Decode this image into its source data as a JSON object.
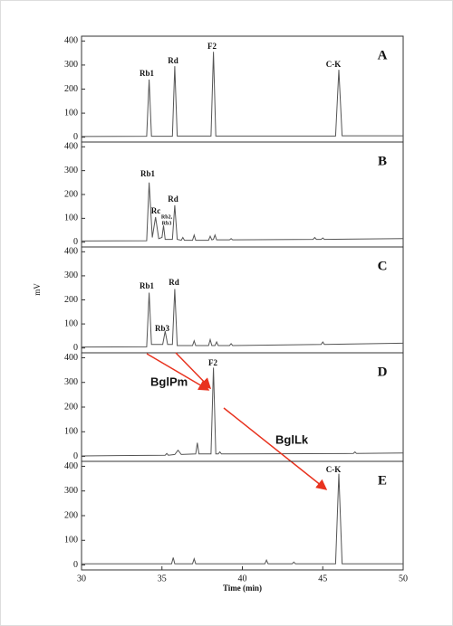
{
  "chart_data": [
    {
      "type": "line",
      "panel": "A",
      "color": "#555555",
      "xlim": [
        30,
        50
      ],
      "ylim": [
        -20,
        420
      ],
      "yticks": [
        0,
        100,
        200,
        300,
        400
      ],
      "annotations": [
        "Rb1",
        "Rd",
        "F2",
        "C-K"
      ],
      "x": [
        30,
        34.05,
        34.2,
        34.35,
        35.65,
        35.8,
        35.95,
        38.05,
        38.2,
        38.35,
        45.8,
        46,
        46.2,
        50
      ],
      "values": [
        3,
        4,
        240,
        4,
        4,
        295,
        5,
        5,
        355,
        5,
        5,
        280,
        6,
        6
      ]
    },
    {
      "type": "line",
      "panel": "B",
      "color": "#555555",
      "xlim": [
        30,
        50
      ],
      "ylim": [
        -20,
        420
      ],
      "yticks": [
        0,
        100,
        200,
        300,
        400
      ],
      "annotations": [
        "Rb1",
        "Rc",
        "Rb2,",
        "Rb3",
        "Rd"
      ],
      "x": [
        30,
        34.05,
        34.2,
        34.4,
        34.6,
        34.8,
        35.0,
        35.1,
        35.2,
        35.65,
        35.8,
        35.95,
        36.2,
        36.3,
        36.4,
        36.9,
        37.0,
        37.1,
        37.9,
        38.0,
        38.1,
        38.2,
        38.3,
        38.4,
        39.2,
        39.3,
        39.4,
        44.4,
        44.5,
        44.6,
        44.9,
        45,
        45.1,
        50
      ],
      "values": [
        5,
        6,
        250,
        20,
        105,
        15,
        20,
        70,
        12,
        12,
        155,
        12,
        8,
        20,
        8,
        8,
        30,
        8,
        8,
        25,
        10,
        12,
        30,
        10,
        10,
        15,
        10,
        12,
        20,
        12,
        12,
        18,
        12,
        15
      ]
    },
    {
      "type": "line",
      "panel": "C",
      "color": "#555555",
      "xlim": [
        30,
        50
      ],
      "ylim": [
        -20,
        420
      ],
      "yticks": [
        0,
        100,
        200,
        300,
        400
      ],
      "ylabel": "mV",
      "annotations": [
        "Rb1",
        "Rb3",
        "Rd"
      ],
      "x": [
        30,
        34.05,
        34.2,
        34.35,
        35.05,
        35.2,
        35.35,
        35.65,
        35.8,
        35.95,
        36.9,
        37.0,
        37.1,
        37.9,
        38.0,
        38.1,
        38.3,
        38.4,
        38.5,
        39.2,
        39.3,
        39.4,
        44.9,
        45,
        45.1,
        50
      ],
      "values": [
        4,
        5,
        230,
        15,
        15,
        70,
        15,
        15,
        245,
        10,
        10,
        30,
        10,
        10,
        35,
        10,
        10,
        25,
        10,
        10,
        18,
        10,
        15,
        25,
        15,
        20
      ]
    },
    {
      "type": "line",
      "panel": "D",
      "color": "#555555",
      "xlim": [
        30,
        50
      ],
      "ylim": [
        -20,
        420
      ],
      "yticks": [
        0,
        100,
        200,
        300,
        400
      ],
      "annotations": [
        "F2"
      ],
      "arrow_labels": [
        "BglPm",
        "BglLk"
      ],
      "x": [
        30,
        35.2,
        35.3,
        35.4,
        35.8,
        36.0,
        36.2,
        37.1,
        37.2,
        37.3,
        38.05,
        38.2,
        38.35,
        38.5,
        38.6,
        38.7,
        46.9,
        47,
        47.1,
        50
      ],
      "values": [
        2,
        5,
        12,
        5,
        8,
        25,
        8,
        10,
        55,
        10,
        10,
        360,
        10,
        10,
        18,
        10,
        12,
        18,
        12,
        14
      ]
    },
    {
      "type": "line",
      "panel": "E",
      "color": "#555555",
      "xlim": [
        30,
        50
      ],
      "ylim": [
        -20,
        420
      ],
      "yticks": [
        0,
        100,
        200,
        300,
        400
      ],
      "xticks": [
        30,
        35,
        40,
        45,
        50
      ],
      "xlabel": "Time (min)",
      "annotations": [
        "C-K"
      ],
      "x": [
        30,
        35.6,
        35.7,
        35.8,
        36.9,
        37.0,
        37.1,
        41.4,
        41.5,
        41.6,
        43.1,
        43.2,
        43.3,
        45.8,
        46,
        46.2,
        50
      ],
      "values": [
        5,
        5,
        30,
        5,
        5,
        25,
        5,
        5,
        20,
        5,
        5,
        12,
        5,
        5,
        370,
        5,
        5
      ]
    }
  ]
}
